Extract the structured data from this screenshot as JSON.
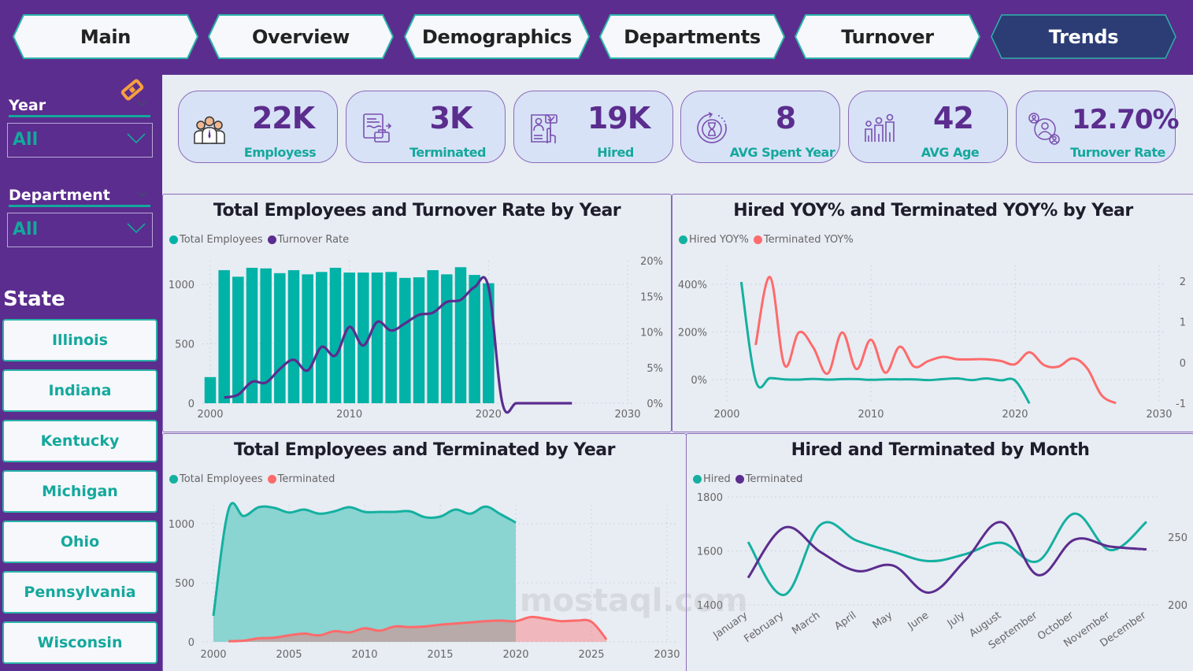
{
  "nav": {
    "tabs": [
      {
        "label": "Main",
        "active": false
      },
      {
        "label": "Overview",
        "active": false
      },
      {
        "label": "Demographics",
        "active": false
      },
      {
        "label": "Departments",
        "active": false
      },
      {
        "label": "Turnover",
        "active": false
      },
      {
        "label": "Trends",
        "active": true
      }
    ]
  },
  "colors": {
    "purple": "#5b2d8e",
    "teal": "#14a89c",
    "coral": "#fd6b6b",
    "active_tab": "#2b3d74",
    "card_bg": "#d7e2f6"
  },
  "filters": {
    "year": {
      "label": "Year",
      "value": "All"
    },
    "department": {
      "label": "Department",
      "value": "All"
    },
    "eraser_icon": "eraser-icon"
  },
  "state": {
    "title": "State",
    "items": [
      "Illinois",
      "Indiana",
      "Kentucky",
      "Michigan",
      "Ohio",
      "Pennsylvania",
      "Wisconsin"
    ]
  },
  "kpis": [
    {
      "value": "22K",
      "label": "Employess",
      "icon": "employees-icon"
    },
    {
      "value": "3K",
      "label": "Terminated",
      "icon": "terminated-icon"
    },
    {
      "value": "19K",
      "label": "Hired",
      "icon": "hired-icon"
    },
    {
      "value": "8",
      "label": "AVG Spent Year",
      "icon": "hourglass-icon"
    },
    {
      "value": "42",
      "label": "AVG Age",
      "icon": "family-icon"
    },
    {
      "value": "12.70%",
      "label": "Turnover Rate",
      "icon": "turnover-icon"
    }
  ],
  "watermark": "mostaql.com",
  "chart_data": [
    {
      "type": "bar",
      "title": "Total Employees and Turnover Rate by Year",
      "xlabel": "",
      "ylabel": "",
      "x_ticks": [
        "2000",
        "2010",
        "2020",
        "2030"
      ],
      "xlim": [
        2000,
        2030
      ],
      "y_ticks": [
        "0",
        "500",
        "1000"
      ],
      "ylim": [
        0,
        1200
      ],
      "y2_ticks": [
        "0%",
        "5%",
        "10%",
        "15%",
        "20%"
      ],
      "y2lim": [
        0,
        20
      ],
      "grid": true,
      "legend": "top-left",
      "series": [
        {
          "name": "Total Employees",
          "type": "bar",
          "color": "#01b2a6",
          "x": [
            2000,
            2001,
            2002,
            2003,
            2004,
            2005,
            2006,
            2007,
            2008,
            2009,
            2010,
            2011,
            2012,
            2013,
            2014,
            2015,
            2016,
            2017,
            2018,
            2019,
            2020
          ],
          "values": [
            220,
            1120,
            1065,
            1140,
            1135,
            1095,
            1120,
            1085,
            1105,
            1140,
            1100,
            1100,
            1100,
            1105,
            1055,
            1060,
            1120,
            1085,
            1145,
            1080,
            1010
          ]
        },
        {
          "name": "Turnover Rate",
          "type": "line",
          "axis": "right",
          "color": "#5b2d8e",
          "x": [
            2001,
            2002,
            2003,
            2004,
            2005,
            2006,
            2007,
            2008,
            2009,
            2010,
            2011,
            2012,
            2013,
            2014,
            2015,
            2016,
            2017,
            2018,
            2019,
            2020,
            2021,
            2022,
            2023,
            2024,
            2025,
            2026
          ],
          "values": [
            0.8,
            1.2,
            3.0,
            2.9,
            4.8,
            6.1,
            4.6,
            7.9,
            6.7,
            10.7,
            8.1,
            11.4,
            10.2,
            11.2,
            12.4,
            12.7,
            14.2,
            14.5,
            16.3,
            16.3,
            0,
            0,
            0,
            0,
            0,
            0
          ]
        }
      ]
    },
    {
      "type": "line",
      "title": "Hired YOY% and Terminated YOY% by Year",
      "xlabel": "",
      "ylabel": "",
      "x_ticks": [
        "2000",
        "2010",
        "2020",
        "2030"
      ],
      "xlim": [
        2000,
        2030
      ],
      "y_ticks": [
        "0%",
        "200%",
        "400%"
      ],
      "ylim": [
        -100,
        450
      ],
      "y2_ticks": [
        "-1",
        "0",
        "1",
        "2"
      ],
      "y2lim": [
        -1,
        2.3
      ],
      "grid": true,
      "legend": "top-left",
      "series": [
        {
          "name": "Hired YOY%",
          "axis": "left",
          "color": "#14b0a0",
          "x": [
            2001,
            2002,
            2003,
            2004,
            2005,
            2006,
            2007,
            2008,
            2009,
            2010,
            2011,
            2012,
            2013,
            2014,
            2015,
            2016,
            2017,
            2018,
            2019,
            2020,
            2021
          ],
          "values": [
            410,
            -3,
            6,
            1,
            0,
            3,
            0,
            2,
            2,
            -1,
            1,
            1,
            1,
            -2,
            2,
            5,
            -2,
            5,
            -3,
            -4,
            -100
          ]
        },
        {
          "name": "Terminated YOY%",
          "axis": "right",
          "color": "#fd6b6b",
          "x": [
            2002,
            2003,
            2004,
            2005,
            2006,
            2007,
            2008,
            2009,
            2010,
            2011,
            2012,
            2013,
            2014,
            2015,
            2016,
            2017,
            2018,
            2019,
            2020,
            2021,
            2022,
            2023,
            2024,
            2025,
            2026,
            2027
          ],
          "values": [
            0.43,
            2.1,
            -0.06,
            0.74,
            0.37,
            -0.27,
            0.74,
            -0.16,
            0.56,
            -0.25,
            0.39,
            -0.1,
            0.04,
            0.14,
            0.08,
            0.08,
            0.08,
            0.04,
            -0.04,
            0.25,
            -0.06,
            -0.1,
            0.1,
            -0.14,
            -0.8,
            -1.0
          ]
        }
      ]
    },
    {
      "type": "area",
      "title": "Total Employees and Terminated by Year",
      "xlabel": "",
      "ylabel": "",
      "x_ticks": [
        "2000",
        "2005",
        "2010",
        "2015",
        "2020",
        "2025",
        "2030"
      ],
      "xlim": [
        2000,
        2030
      ],
      "y_ticks": [
        "0",
        "500",
        "1000"
      ],
      "ylim": [
        0,
        1200
      ],
      "grid": true,
      "legend": "top-left",
      "series": [
        {
          "name": "Total Employees",
          "color": "#14b0a0",
          "fill": "#8ad4d2",
          "x": [
            2000,
            2001,
            2002,
            2003,
            2004,
            2005,
            2006,
            2007,
            2008,
            2009,
            2010,
            2011,
            2012,
            2013,
            2014,
            2015,
            2016,
            2017,
            2018,
            2019,
            2020
          ],
          "values": [
            220,
            1120,
            1065,
            1140,
            1135,
            1095,
            1120,
            1085,
            1105,
            1140,
            1100,
            1100,
            1100,
            1105,
            1055,
            1060,
            1120,
            1085,
            1145,
            1080,
            1010
          ]
        },
        {
          "name": "Terminated",
          "color": "#fd6b6b",
          "fill": "rgba(253,107,107,0.4)",
          "x": [
            2001,
            2002,
            2003,
            2004,
            2005,
            2006,
            2007,
            2008,
            2009,
            2010,
            2011,
            2012,
            2013,
            2014,
            2015,
            2016,
            2017,
            2018,
            2019,
            2020,
            2021,
            2022,
            2023,
            2024,
            2025,
            2026
          ],
          "values": [
            5,
            10,
            30,
            35,
            55,
            70,
            55,
            90,
            80,
            115,
            95,
            130,
            125,
            130,
            145,
            155,
            165,
            175,
            180,
            175,
            210,
            195,
            175,
            180,
            170,
            20
          ]
        }
      ]
    },
    {
      "type": "line",
      "title": "Hired and Terminated by Month",
      "xlabel": "",
      "ylabel": "",
      "categories": [
        "January",
        "February",
        "March",
        "April",
        "May",
        "June",
        "July",
        "August",
        "September",
        "October",
        "November",
        "December"
      ],
      "y_ticks": [
        "1400",
        "1600",
        "1800"
      ],
      "ylim": [
        1400,
        1800
      ],
      "y2_ticks": [
        "200",
        "250"
      ],
      "y2lim": [
        200,
        266.7
      ],
      "grid": true,
      "legend": "top-left",
      "series": [
        {
          "name": "Hired",
          "axis": "left",
          "color": "#14b0a0",
          "values": [
            1633,
            1437,
            1697,
            1638,
            1597,
            1562,
            1588,
            1630,
            1562,
            1738,
            1603,
            1708
          ]
        },
        {
          "name": "Terminated",
          "axis": "right",
          "color": "#5b2d8e",
          "values": [
            220,
            257,
            239,
            225,
            229,
            209,
            233,
            261,
            222,
            248,
            243,
            241
          ]
        }
      ]
    }
  ]
}
